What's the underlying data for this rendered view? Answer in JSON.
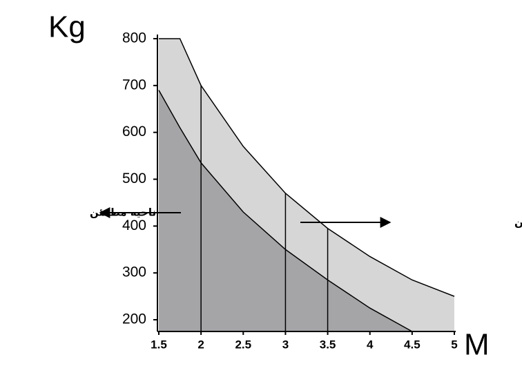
{
  "chart_data": {
    "type": "area",
    "y_label": "Kg",
    "x_label": "M",
    "x": [
      1.5,
      1.75,
      2,
      2.5,
      3,
      3.5,
      4,
      4.5,
      5
    ],
    "series": [
      {
        "color": "#d6d6d6",
        "values": [
          800,
          800,
          700,
          570,
          470,
          395,
          335,
          285,
          250
        ]
      },
      {
        "color": "#a5a5a7",
        "values": [
          690,
          610,
          535,
          430,
          350,
          285,
          225,
          175,
          null
        ]
      }
    ],
    "markers": [
      2,
      3,
      3.5
    ],
    "xlim": [
      1.5,
      5
    ],
    "ylim": [
      175,
      800
    ],
    "xticks": [
      1.5,
      2,
      2.5,
      3,
      3.5,
      4,
      4.5,
      5
    ],
    "yticks": [
      200,
      300,
      400,
      500,
      600,
      700,
      800
    ],
    "annotations": [
      {
        "text": "ناحیه مطمئن",
        "direction": "left"
      },
      {
        "text": "ناحیه غیر مطمئن",
        "direction": "right"
      }
    ]
  }
}
